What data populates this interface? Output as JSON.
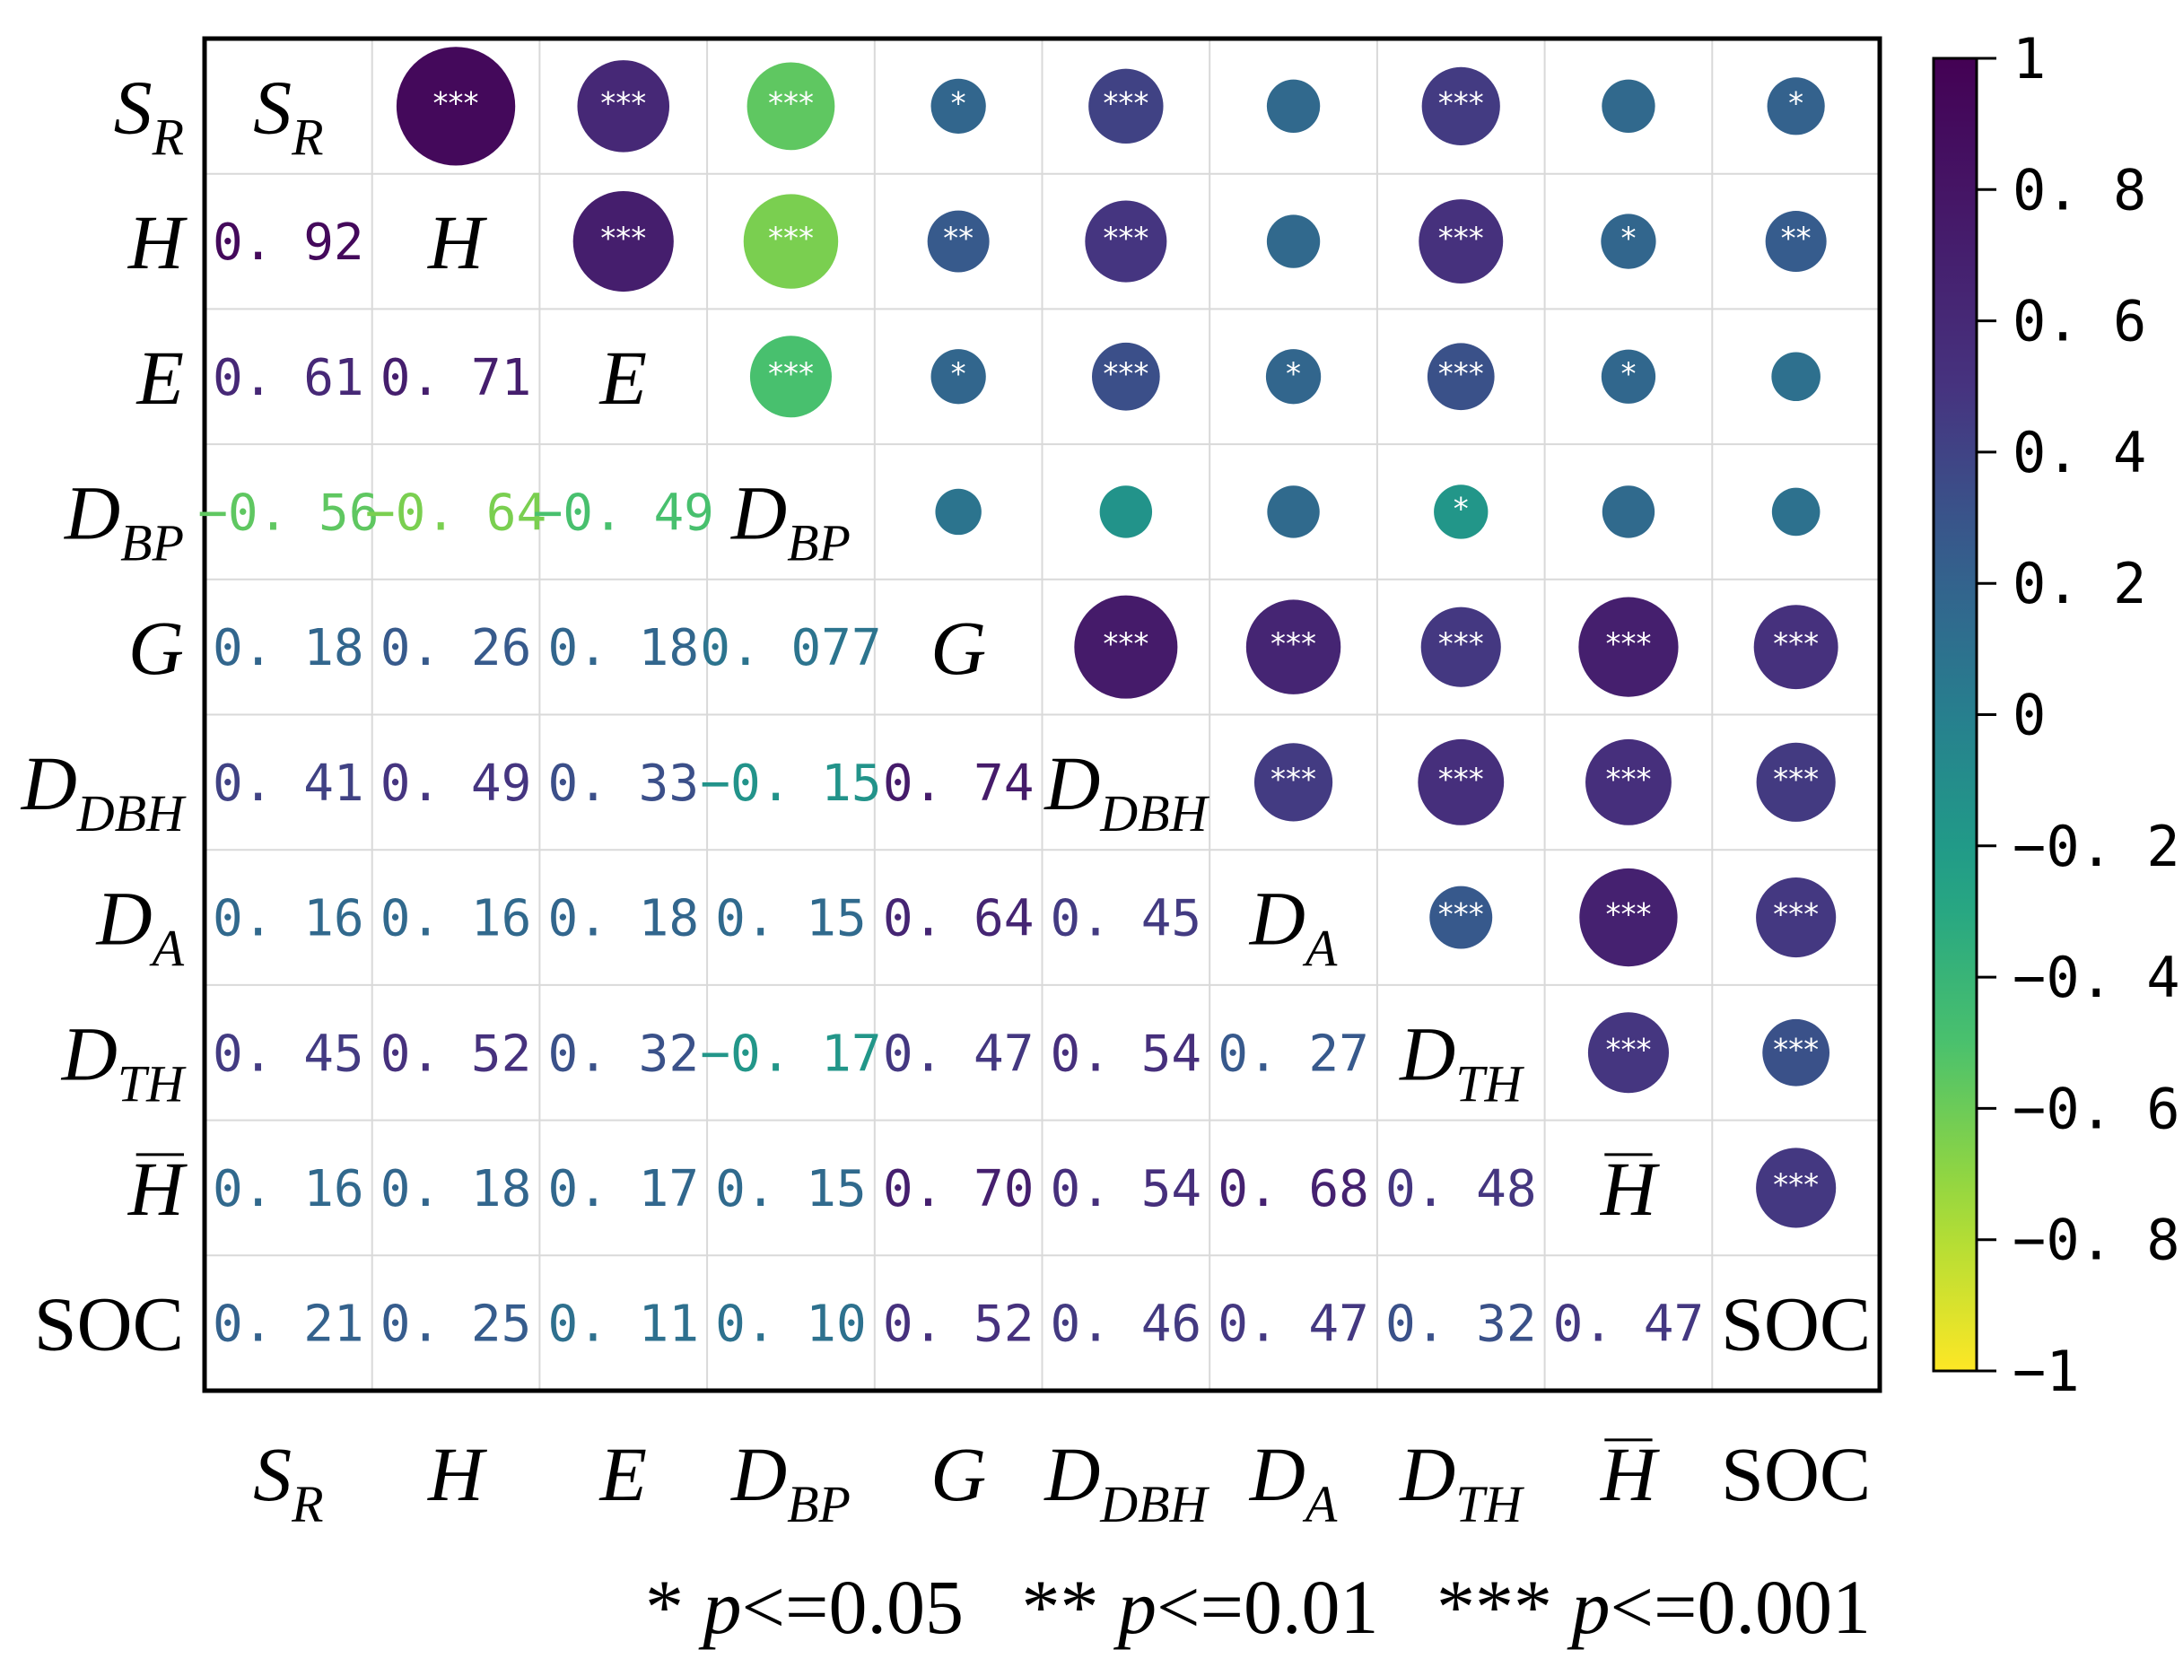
{
  "chart_data": {
    "type": "heatmap",
    "subtype": "correlation-matrix",
    "variables": [
      {
        "base": "S",
        "sub": "R",
        "bar": false
      },
      {
        "base": "H",
        "sub": "",
        "bar": false
      },
      {
        "base": "E",
        "sub": "",
        "bar": false
      },
      {
        "base": "D",
        "sub": "BP",
        "bar": false
      },
      {
        "base": "G",
        "sub": "",
        "bar": false
      },
      {
        "base": "D",
        "sub": "DBH",
        "bar": false
      },
      {
        "base": "D",
        "sub": "A",
        "bar": false
      },
      {
        "base": "D",
        "sub": "TH",
        "bar": false
      },
      {
        "base": "H",
        "sub": "",
        "bar": true
      },
      {
        "base": "SOC",
        "sub": "",
        "bar": false,
        "upright": true
      }
    ],
    "lower_values": [
      [
        "",
        "",
        "",
        "",
        "",
        "",
        "",
        "",
        "",
        ""
      ],
      [
        "0.92",
        "",
        "",
        "",
        "",
        "",
        "",
        "",
        "",
        ""
      ],
      [
        "0.61",
        "0.71",
        "",
        "",
        "",
        "",
        "",
        "",
        "",
        ""
      ],
      [
        "−0.56",
        "−0.64",
        "−0.49",
        "",
        "",
        "",
        "",
        "",
        "",
        ""
      ],
      [
        "0.18",
        "0.26",
        "0.18",
        "0.077",
        "",
        "",
        "",
        "",
        "",
        ""
      ],
      [
        "0.41",
        "0.49",
        "0.33",
        "−0.15",
        "0.74",
        "",
        "",
        "",
        "",
        ""
      ],
      [
        "0.16",
        "0.16",
        "0.18",
        "0.15",
        "0.64",
        "0.45",
        "",
        "",
        "",
        ""
      ],
      [
        "0.45",
        "0.52",
        "0.32",
        "−0.17",
        "0.47",
        "0.54",
        "0.27",
        "",
        "",
        ""
      ],
      [
        "0.16",
        "0.18",
        "0.17",
        "0.15",
        "0.70",
        "0.54",
        "0.68",
        "0.48",
        "",
        ""
      ],
      [
        "0.21",
        "0.25",
        "0.11",
        "0.10",
        "0.52",
        "0.46",
        "0.47",
        "0.32",
        "0.47",
        ""
      ]
    ],
    "upper_significance": [
      [
        "",
        "***",
        "***",
        "***",
        "*",
        "***",
        "",
        "***",
        "",
        "*"
      ],
      [
        "",
        "",
        "***",
        "***",
        "**",
        "***",
        "",
        "***",
        "*",
        "**"
      ],
      [
        "",
        "",
        "",
        "***",
        "*",
        "***",
        "*",
        "***",
        "*",
        ""
      ],
      [
        "",
        "",
        "",
        "",
        "",
        "",
        "",
        "*",
        "",
        ""
      ],
      [
        "",
        "",
        "",
        "",
        "",
        "***",
        "***",
        "***",
        "***",
        "***"
      ],
      [
        "",
        "",
        "",
        "",
        "",
        "",
        "***",
        "***",
        "***",
        "***"
      ],
      [
        "",
        "",
        "",
        "",
        "",
        "",
        "",
        "***",
        "***",
        "***"
      ],
      [
        "",
        "",
        "",
        "",
        "",
        "",
        "",
        "",
        "***",
        "***"
      ],
      [
        "",
        "",
        "",
        "",
        "",
        "",
        "",
        "",
        "",
        "***"
      ],
      [
        "",
        "",
        "",
        "",
        "",
        "",
        "",
        "",
        "",
        ""
      ]
    ],
    "colorbar": {
      "min": -1,
      "max": 1,
      "colormap": "viridis-reversed",
      "ticks": [
        1,
        0.8,
        0.6,
        0.4,
        0.2,
        0,
        -0.2,
        -0.4,
        -0.6,
        -0.8,
        -1
      ],
      "tick_labels": [
        "1",
        "0. 8",
        "0. 6",
        "0. 4",
        "0. 2",
        "0",
        "−0. 2",
        "−0. 4",
        "−0. 6",
        "−0. 8",
        "−1"
      ]
    },
    "legend_note": [
      {
        "stars": "*",
        "p": "p",
        "rest": "<=0.05"
      },
      {
        "stars": "**",
        "p": "p",
        "rest": "<=0.01"
      },
      {
        "stars": "***",
        "p": "p",
        "rest": "<=0.001"
      }
    ]
  }
}
